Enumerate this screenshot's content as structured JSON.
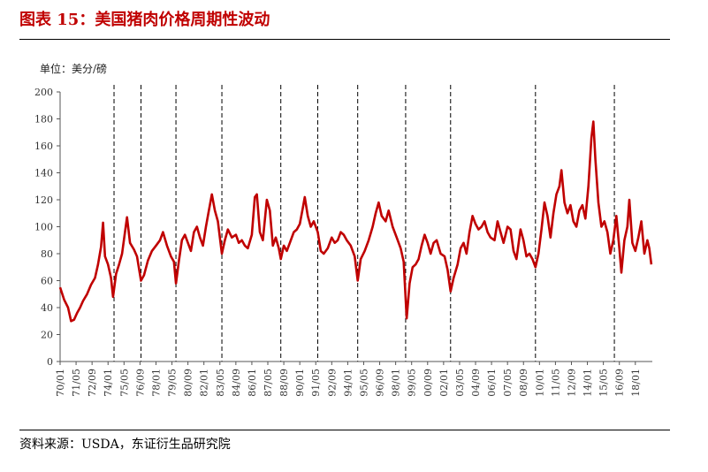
{
  "figure": {
    "title": "图表 15：美国猪肉价格周期性波动",
    "source": "资料来源：USDA，东证衍生品研究院"
  },
  "colors": {
    "accent": "#c00000",
    "series": "#c00000",
    "divider": "#000000"
  },
  "chart_data": {
    "type": "line",
    "unit_label": "单位：美分/磅",
    "ylim": [
      0,
      200
    ],
    "yticks": [
      0,
      20,
      40,
      60,
      80,
      100,
      120,
      140,
      160,
      180,
      200
    ],
    "xlim": [
      "1970-01",
      "2019-06"
    ],
    "xticks": [
      "70/01",
      "71/05",
      "72/09",
      "74/01",
      "75/05",
      "76/09",
      "78/01",
      "79/05",
      "80/09",
      "82/01",
      "83/05",
      "84/09",
      "86/01",
      "87/05",
      "88/09",
      "90/01",
      "91/05",
      "92/09",
      "94/01",
      "95/05",
      "96/09",
      "98/01",
      "99/05",
      "00/09",
      "02/01",
      "03/05",
      "04/09",
      "06/01",
      "07/05",
      "08/09",
      "10/01",
      "11/05",
      "12/09",
      "14/01",
      "15/05",
      "16/09",
      "18/01"
    ],
    "cycle_dividers": [
      "1974-07",
      "1976-10",
      "1979-09",
      "1983-07",
      "1988-06",
      "1991-07",
      "1994-11",
      "1998-11",
      "2002-08",
      "2009-09",
      "2016-04"
    ],
    "grid": false,
    "legend": "none",
    "series": [
      {
        "values": [
          [
            "1970-01",
            55
          ],
          [
            "1970-05",
            46
          ],
          [
            "1970-09",
            40
          ],
          [
            "1970-12",
            30
          ],
          [
            "1971-03",
            31
          ],
          [
            "1971-06",
            36
          ],
          [
            "1971-09",
            40
          ],
          [
            "1971-12",
            45
          ],
          [
            "1972-04",
            50
          ],
          [
            "1972-08",
            57
          ],
          [
            "1972-12",
            62
          ],
          [
            "1973-03",
            72
          ],
          [
            "1973-06",
            85
          ],
          [
            "1973-08",
            103
          ],
          [
            "1973-10",
            78
          ],
          [
            "1974-01",
            72
          ],
          [
            "1974-04",
            62
          ],
          [
            "1974-06",
            48
          ],
          [
            "1974-09",
            65
          ],
          [
            "1974-12",
            72
          ],
          [
            "1975-03",
            80
          ],
          [
            "1975-06",
            96
          ],
          [
            "1975-08",
            107
          ],
          [
            "1975-11",
            88
          ],
          [
            "1976-03",
            83
          ],
          [
            "1976-06",
            78
          ],
          [
            "1976-10",
            60
          ],
          [
            "1977-01",
            64
          ],
          [
            "1977-05",
            75
          ],
          [
            "1977-09",
            82
          ],
          [
            "1978-01",
            86
          ],
          [
            "1978-05",
            90
          ],
          [
            "1978-08",
            96
          ],
          [
            "1978-12",
            86
          ],
          [
            "1979-04",
            78
          ],
          [
            "1979-07",
            74
          ],
          [
            "1979-09",
            58
          ],
          [
            "1979-12",
            75
          ],
          [
            "1980-03",
            90
          ],
          [
            "1980-06",
            94
          ],
          [
            "1980-09",
            88
          ],
          [
            "1980-12",
            82
          ],
          [
            "1981-03",
            96
          ],
          [
            "1981-06",
            100
          ],
          [
            "1981-09",
            92
          ],
          [
            "1981-12",
            86
          ],
          [
            "1982-03",
            100
          ],
          [
            "1982-06",
            112
          ],
          [
            "1982-09",
            124
          ],
          [
            "1982-12",
            112
          ],
          [
            "1983-03",
            104
          ],
          [
            "1983-07",
            80
          ],
          [
            "1983-10",
            90
          ],
          [
            "1984-01",
            98
          ],
          [
            "1984-05",
            92
          ],
          [
            "1984-09",
            94
          ],
          [
            "1984-12",
            88
          ],
          [
            "1985-03",
            90
          ],
          [
            "1985-06",
            86
          ],
          [
            "1985-09",
            84
          ],
          [
            "1986-01",
            94
          ],
          [
            "1986-04",
            122
          ],
          [
            "1986-06",
            124
          ],
          [
            "1986-09",
            96
          ],
          [
            "1986-12",
            90
          ],
          [
            "1987-04",
            120
          ],
          [
            "1987-07",
            112
          ],
          [
            "1987-10",
            86
          ],
          [
            "1988-01",
            92
          ],
          [
            "1988-04",
            84
          ],
          [
            "1988-06",
            76
          ],
          [
            "1988-09",
            86
          ],
          [
            "1988-12",
            82
          ],
          [
            "1989-03",
            88
          ],
          [
            "1989-07",
            96
          ],
          [
            "1989-10",
            98
          ],
          [
            "1990-01",
            102
          ],
          [
            "1990-04",
            114
          ],
          [
            "1990-06",
            122
          ],
          [
            "1990-09",
            108
          ],
          [
            "1990-12",
            100
          ],
          [
            "1991-03",
            104
          ],
          [
            "1991-07",
            96
          ],
          [
            "1991-10",
            82
          ],
          [
            "1992-01",
            80
          ],
          [
            "1992-05",
            84
          ],
          [
            "1992-09",
            92
          ],
          [
            "1992-12",
            88
          ],
          [
            "1993-03",
            90
          ],
          [
            "1993-06",
            96
          ],
          [
            "1993-09",
            94
          ],
          [
            "1993-12",
            90
          ],
          [
            "1994-04",
            86
          ],
          [
            "1994-08",
            78
          ],
          [
            "1994-11",
            60
          ],
          [
            "1995-02",
            76
          ],
          [
            "1995-06",
            82
          ],
          [
            "1995-10",
            90
          ],
          [
            "1996-02",
            100
          ],
          [
            "1996-05",
            110
          ],
          [
            "1996-08",
            118
          ],
          [
            "1996-11",
            108
          ],
          [
            "1997-03",
            104
          ],
          [
            "1997-06",
            112
          ],
          [
            "1997-10",
            100
          ],
          [
            "1998-02",
            92
          ],
          [
            "1998-06",
            84
          ],
          [
            "1998-09",
            74
          ],
          [
            "1998-12",
            32
          ],
          [
            "1999-03",
            58
          ],
          [
            "1999-06",
            70
          ],
          [
            "1999-09",
            72
          ],
          [
            "1999-12",
            76
          ],
          [
            "2000-03",
            86
          ],
          [
            "2000-06",
            94
          ],
          [
            "2000-09",
            88
          ],
          [
            "2000-12",
            80
          ],
          [
            "2001-03",
            88
          ],
          [
            "2001-06",
            90
          ],
          [
            "2001-10",
            80
          ],
          [
            "2002-02",
            78
          ],
          [
            "2002-05",
            68
          ],
          [
            "2002-08",
            52
          ],
          [
            "2002-11",
            62
          ],
          [
            "2003-03",
            72
          ],
          [
            "2003-06",
            84
          ],
          [
            "2003-09",
            88
          ],
          [
            "2003-12",
            80
          ],
          [
            "2004-03",
            96
          ],
          [
            "2004-06",
            108
          ],
          [
            "2004-09",
            102
          ],
          [
            "2004-12",
            98
          ],
          [
            "2005-03",
            100
          ],
          [
            "2005-06",
            104
          ],
          [
            "2005-09",
            96
          ],
          [
            "2005-12",
            92
          ],
          [
            "2006-04",
            90
          ],
          [
            "2006-07",
            104
          ],
          [
            "2006-10",
            96
          ],
          [
            "2007-01",
            88
          ],
          [
            "2007-05",
            100
          ],
          [
            "2007-08",
            98
          ],
          [
            "2007-11",
            82
          ],
          [
            "2008-02",
            76
          ],
          [
            "2008-06",
            98
          ],
          [
            "2008-09",
            90
          ],
          [
            "2008-12",
            78
          ],
          [
            "2009-03",
            80
          ],
          [
            "2009-06",
            76
          ],
          [
            "2009-09",
            70
          ],
          [
            "2009-12",
            80
          ],
          [
            "2010-03",
            98
          ],
          [
            "2010-06",
            118
          ],
          [
            "2010-09",
            108
          ],
          [
            "2010-12",
            92
          ],
          [
            "2011-03",
            110
          ],
          [
            "2011-06",
            124
          ],
          [
            "2011-09",
            130
          ],
          [
            "2011-11",
            142
          ],
          [
            "2012-02",
            118
          ],
          [
            "2012-05",
            110
          ],
          [
            "2012-08",
            116
          ],
          [
            "2012-11",
            104
          ],
          [
            "2013-02",
            100
          ],
          [
            "2013-05",
            112
          ],
          [
            "2013-08",
            116
          ],
          [
            "2013-11",
            106
          ],
          [
            "2014-02",
            130
          ],
          [
            "2014-05",
            166
          ],
          [
            "2014-07",
            178
          ],
          [
            "2014-09",
            150
          ],
          [
            "2014-12",
            118
          ],
          [
            "2015-03",
            100
          ],
          [
            "2015-06",
            104
          ],
          [
            "2015-09",
            96
          ],
          [
            "2015-12",
            80
          ],
          [
            "2016-03",
            90
          ],
          [
            "2016-06",
            108
          ],
          [
            "2016-09",
            84
          ],
          [
            "2016-11",
            66
          ],
          [
            "2017-02",
            90
          ],
          [
            "2017-05",
            100
          ],
          [
            "2017-07",
            120
          ],
          [
            "2017-10",
            88
          ],
          [
            "2018-01",
            82
          ],
          [
            "2018-04",
            92
          ],
          [
            "2018-07",
            104
          ],
          [
            "2018-10",
            80
          ],
          [
            "2019-01",
            90
          ],
          [
            "2019-03",
            84
          ],
          [
            "2019-05",
            72
          ]
        ]
      }
    ]
  }
}
